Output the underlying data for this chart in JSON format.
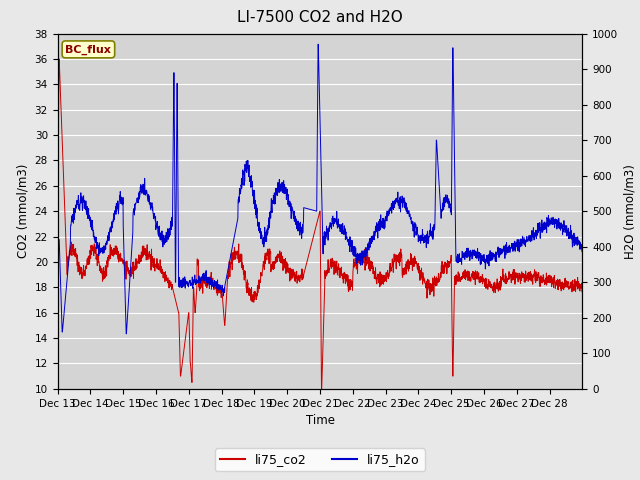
{
  "title": "LI-7500 CO2 and H2O",
  "xlabel": "Time",
  "ylabel_left": "CO2 (mmol/m3)",
  "ylabel_right": "H2O (mmol/m3)",
  "legend_label1": "li75_co2",
  "legend_label2": "li75_h2o",
  "watermark": "BC_flux",
  "co2_color": "#cc0000",
  "h2o_color": "#0000cc",
  "ylim_left": [
    10,
    38
  ],
  "ylim_right": [
    0,
    1000
  ],
  "yticks_left": [
    10,
    12,
    14,
    16,
    18,
    20,
    22,
    24,
    26,
    28,
    30,
    32,
    34,
    36,
    38
  ],
  "yticks_right": [
    0,
    100,
    200,
    300,
    400,
    500,
    600,
    700,
    800,
    900,
    1000
  ],
  "bg_color": "#e8e8e8",
  "plot_bg_color": "#d4d4d4",
  "title_fontsize": 11,
  "tick_fontsize": 7.5,
  "label_fontsize": 8.5,
  "xtick_labels": [
    "Dec 13",
    "Dec 14",
    "Dec 15",
    "Dec 16",
    "Dec 17",
    "Dec 18",
    "Dec 19",
    "Dec 20",
    "Dec 21",
    "Dec 22",
    "Dec 23",
    "Dec 24",
    "Dec 25",
    "Dec 26",
    "Dec 27",
    "Dec 28"
  ]
}
